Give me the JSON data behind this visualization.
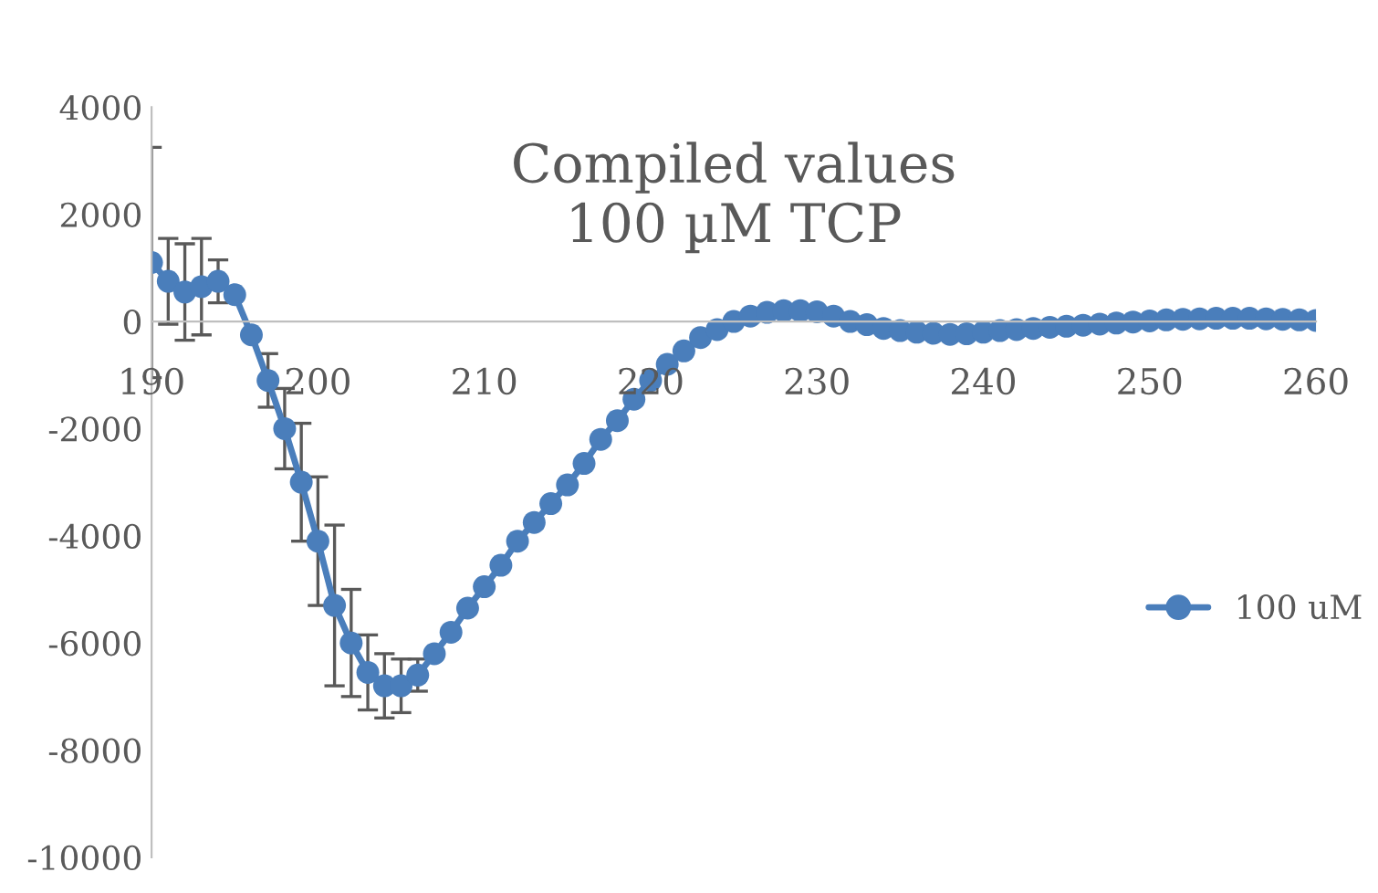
{
  "chart_data": {
    "type": "line",
    "title": "Compiled values\n100 µM TCP",
    "x": [
      190,
      191,
      192,
      193,
      194,
      195,
      196,
      197,
      198,
      199,
      200,
      201,
      202,
      203,
      204,
      205,
      206,
      207,
      208,
      209,
      210,
      211,
      212,
      213,
      214,
      215,
      216,
      217,
      218,
      219,
      220,
      221,
      222,
      223,
      224,
      225,
      226,
      227,
      228,
      229,
      230,
      231,
      232,
      233,
      234,
      235,
      236,
      237,
      238,
      239,
      240,
      241,
      242,
      243,
      244,
      245,
      246,
      247,
      248,
      249,
      250,
      251,
      252,
      253,
      254,
      255,
      256,
      257,
      258,
      259,
      260
    ],
    "series": [
      {
        "name": "100 uM",
        "color": "#4a7ebb",
        "values": [
          1100,
          750,
          550,
          650,
          750,
          500,
          -250,
          -1100,
          -2000,
          -3000,
          -4100,
          -5300,
          -6000,
          -6550,
          -6800,
          -6800,
          -6600,
          -6200,
          -5800,
          -5350,
          -4950,
          -4550,
          -4100,
          -3750,
          -3400,
          -3050,
          -2650,
          -2200,
          -1850,
          -1450,
          -1100,
          -800,
          -550,
          -300,
          -150,
          0,
          100,
          170,
          200,
          200,
          180,
          100,
          0,
          -60,
          -130,
          -170,
          -200,
          -220,
          -240,
          -230,
          -200,
          -170,
          -150,
          -130,
          -110,
          -90,
          -70,
          -50,
          -30,
          -10,
          10,
          30,
          40,
          50,
          60,
          60,
          60,
          50,
          40,
          30,
          20
        ],
        "errors": [
          2150,
          800,
          900,
          900,
          400,
          null,
          null,
          500,
          750,
          1100,
          1200,
          1500,
          1000,
          700,
          600,
          500,
          300,
          null,
          null,
          null,
          null,
          null,
          null,
          null,
          null,
          null,
          null,
          null,
          null,
          null,
          null,
          null,
          null,
          null,
          null,
          null,
          null,
          null,
          null,
          null,
          null,
          null,
          null,
          null,
          null,
          null,
          null,
          null,
          null,
          null,
          null,
          null,
          null,
          null,
          null,
          null,
          null,
          null,
          null,
          null,
          null,
          null,
          null,
          null,
          null,
          null,
          null,
          null,
          null,
          null,
          null
        ]
      }
    ],
    "xlim": [
      190,
      260
    ],
    "xticks": [
      190,
      200,
      210,
      220,
      230,
      240,
      250,
      260
    ],
    "ylim": [
      -10000,
      4000
    ],
    "yticks": [
      -10000,
      -8000,
      -6000,
      -4000,
      -2000,
      0,
      2000,
      4000
    ],
    "marker": "circle",
    "line_style": "solid",
    "legend": "right",
    "grid": false
  }
}
